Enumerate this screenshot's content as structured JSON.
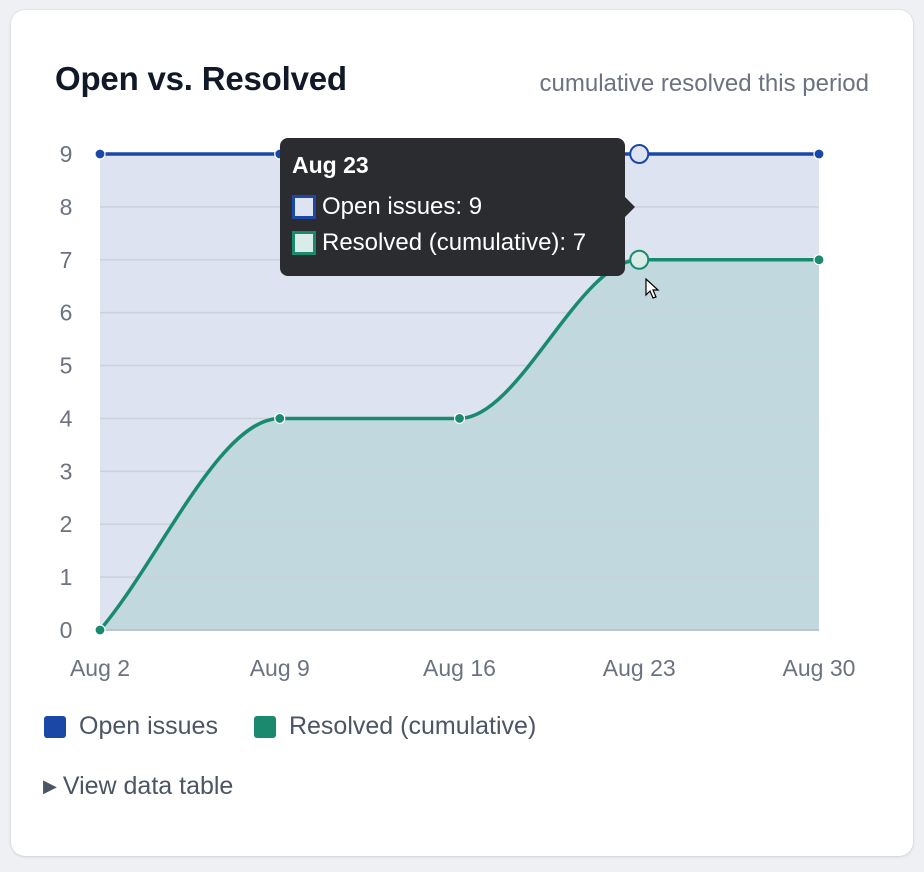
{
  "card": {
    "title": "Open vs. Resolved",
    "subtitle": "cumulative resolved this period",
    "details_label": "View data table"
  },
  "colors": {
    "open": "#1b48a6",
    "open_fill": "#dde3f1",
    "resolved": "#1a8a6e",
    "resolved_fill": "#c1d8df",
    "grid": "#ccd2da",
    "tooltip_bg": "#2a2c30"
  },
  "chart_data": {
    "type": "area",
    "title": "Open vs. Resolved",
    "subtitle": "cumulative resolved this period",
    "x": [
      "Aug 2",
      "Aug 9",
      "Aug 16",
      "Aug 23",
      "Aug 30"
    ],
    "ylim": [
      0,
      9
    ],
    "yticks": [
      0,
      1,
      2,
      3,
      4,
      5,
      6,
      7,
      8,
      9
    ],
    "grid": true,
    "legend_position": "bottom-left",
    "series": [
      {
        "name": "Open issues",
        "values": [
          9,
          9,
          9,
          9,
          9
        ]
      },
      {
        "name": "Resolved (cumulative)",
        "values": [
          0,
          4,
          4,
          7,
          7
        ]
      }
    ]
  },
  "tooltip": {
    "title": "Aug 23",
    "rows": [
      {
        "label": "Open issues: 9"
      },
      {
        "label": "Resolved (cumulative): 7"
      }
    ]
  }
}
